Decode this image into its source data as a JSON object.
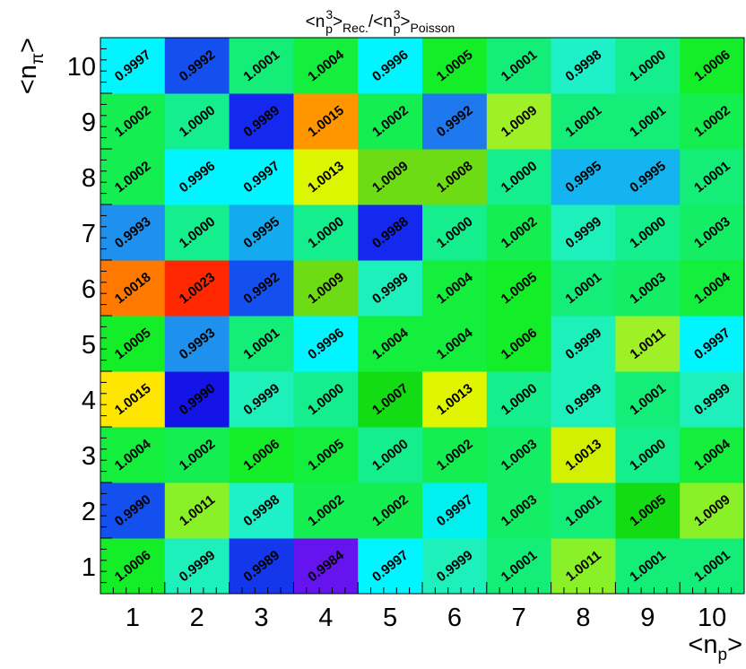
{
  "chart_data": {
    "type": "heatmap",
    "title": {
      "base": "<n",
      "sub": "p",
      "sup": "3",
      "close": ">",
      "sub2": "Rec.",
      "sep": "/<n",
      "sub3": "p",
      "sup3": "3",
      "close3": ">",
      "sub4": "Poisson"
    },
    "xlabel": {
      "base": "<n",
      "sub": "p",
      "close": ">"
    },
    "ylabel": {
      "base": "<n",
      "sub": "π",
      "close": ">"
    },
    "x_categories": [
      "1",
      "2",
      "3",
      "4",
      "5",
      "6",
      "7",
      "8",
      "9",
      "10"
    ],
    "y_categories": [
      "1",
      "2",
      "3",
      "4",
      "5",
      "6",
      "7",
      "8",
      "9",
      "10"
    ],
    "values_by_row_from_bottom": [
      [
        "1.0006",
        "0.9999",
        "0.9989",
        "0.9984",
        "0.9997",
        "0.9999",
        "1.0001",
        "1.0011",
        "1.0001",
        "1.0001"
      ],
      [
        "0.9990",
        "1.0011",
        "0.9998",
        "1.0002",
        "1.0002",
        "0.9997",
        "1.0003",
        "1.0001",
        "1.0005",
        "1.0009"
      ],
      [
        "1.0004",
        "1.0002",
        "1.0006",
        "1.0005",
        "1.0000",
        "1.0002",
        "1.0003",
        "1.0013",
        "1.0000",
        "1.0004"
      ],
      [
        "1.0015",
        "0.9990",
        "0.9999",
        "1.0000",
        "1.0007",
        "1.0013",
        "1.0000",
        "0.9999",
        "1.0001",
        "0.9999"
      ],
      [
        "1.0005",
        "0.9993",
        "1.0001",
        "0.9996",
        "1.0004",
        "1.0004",
        "1.0006",
        "0.9999",
        "1.0011",
        "0.9997"
      ],
      [
        "1.0018",
        "1.0023",
        "0.9992",
        "1.0009",
        "0.9999",
        "1.0004",
        "1.0005",
        "1.0001",
        "1.0003",
        "1.0004"
      ],
      [
        "0.9993",
        "1.0000",
        "0.9995",
        "1.0000",
        "0.9988",
        "1.0000",
        "1.0002",
        "0.9999",
        "1.0000",
        "1.0003"
      ],
      [
        "1.0002",
        "0.9996",
        "0.9997",
        "1.0013",
        "1.0009",
        "1.0008",
        "1.0000",
        "0.9995",
        "0.9995",
        "1.0001"
      ],
      [
        "1.0002",
        "1.0000",
        "0.9989",
        "1.0015",
        "1.0002",
        "0.9992",
        "1.0009",
        "1.0001",
        "1.0001",
        "1.0002"
      ],
      [
        "0.9997",
        "0.9992",
        "1.0001",
        "1.0004",
        "0.9996",
        "1.0005",
        "1.0001",
        "0.9998",
        "1.0000",
        "1.0006"
      ]
    ],
    "colors_by_row_from_bottom": [
      [
        "#14ee28",
        "#1ef0bc",
        "#1437ec",
        "#6514ef",
        "#00f5ff",
        "#1ef0bc",
        "#14ee78",
        "#8af028",
        "#14ee78",
        "#14ee78"
      ],
      [
        "#1450f0",
        "#8af028",
        "#1ef0c8",
        "#14ee50",
        "#14ee50",
        "#00f0f0",
        "#14ee64",
        "#14ee78",
        "#14dc14",
        "#8af028"
      ],
      [
        "#14ee3c",
        "#14ee50",
        "#14ee28",
        "#14ee3c",
        "#14ee8c",
        "#14ee50",
        "#14ee64",
        "#d2f000",
        "#14ee8c",
        "#14ee3c"
      ],
      [
        "#ffe600",
        "#1414e6",
        "#1ef0bc",
        "#14ee8c",
        "#14dc14",
        "#e1f500",
        "#14ee8c",
        "#1ef0bc",
        "#14ee78",
        "#1ef0bc"
      ],
      [
        "#14ee28",
        "#1e90ee",
        "#14ee78",
        "#00f5ff",
        "#14ee3c",
        "#14ee3c",
        "#14ee28",
        "#1ef0bc",
        "#a0f028",
        "#00f5ff"
      ],
      [
        "#ff7800",
        "#ff2800",
        "#1450f0",
        "#6edc14",
        "#1ef0bc",
        "#14ee3c",
        "#14ee28",
        "#14ee78",
        "#14ee64",
        "#14ee3c"
      ],
      [
        "#1e90ee",
        "#14ee8c",
        "#14aaf0",
        "#14ee8c",
        "#1428f0",
        "#14ee8c",
        "#14ee50",
        "#1ef0bc",
        "#14ee8c",
        "#14ee64"
      ],
      [
        "#14ee50",
        "#00f5ff",
        "#00f5ff",
        "#dcf500",
        "#6edc14",
        "#6edc14",
        "#14ee8c",
        "#14b4f0",
        "#14b4f0",
        "#14ee78"
      ],
      [
        "#14ee50",
        "#14ee8c",
        "#1428f0",
        "#ff9600",
        "#14ee50",
        "#1e78ee",
        "#a0f028",
        "#14ee78",
        "#14ee78",
        "#14ee50"
      ],
      [
        "#00f5ff",
        "#1450f0",
        "#14ee78",
        "#14ee3c",
        "#00f5ff",
        "#14ee28",
        "#14ee78",
        "#1ef0c8",
        "#14ee8c",
        "#14ee28"
      ]
    ]
  }
}
